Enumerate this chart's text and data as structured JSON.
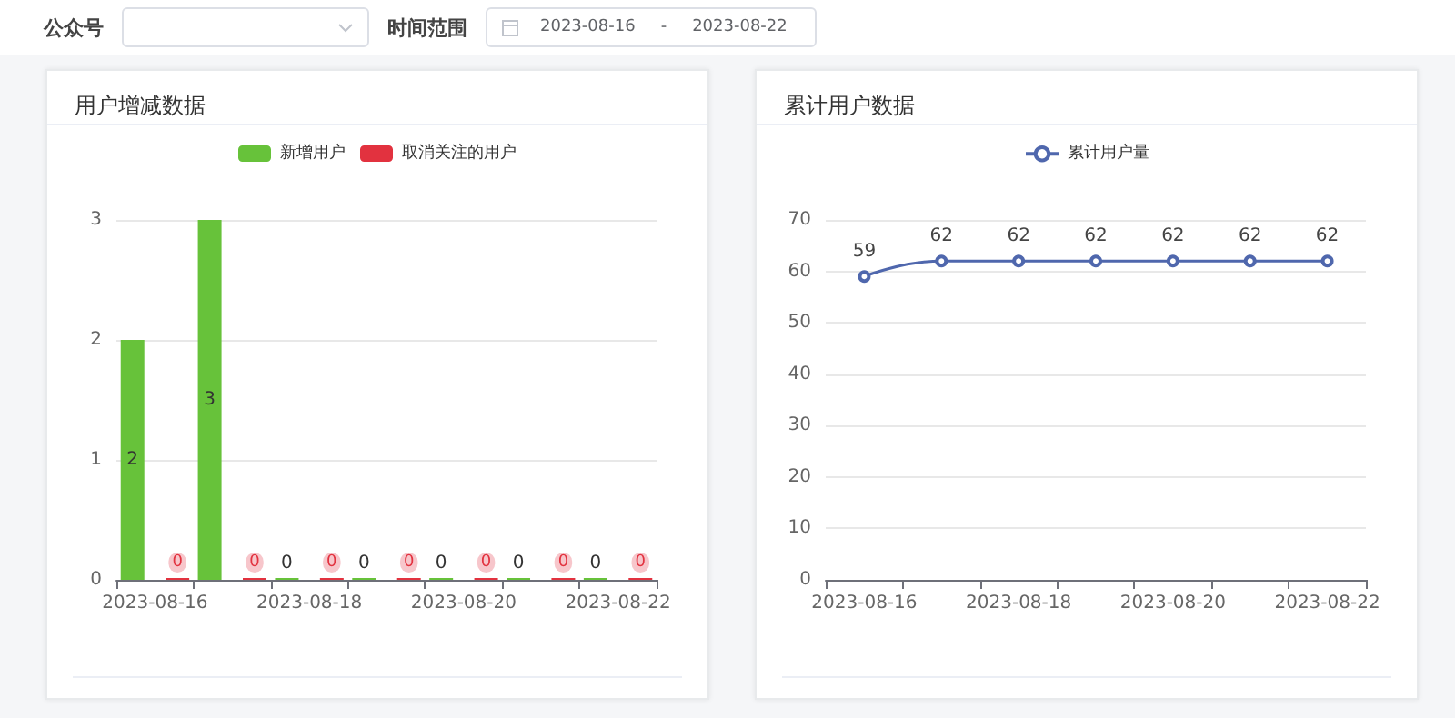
{
  "chart_data": [
    {
      "type": "other",
      "annotations": [
        "公众号",
        "时间范围",
        "2023-08-16",
        "-",
        "2023-08-22"
      ]
    },
    {
      "type": "bar",
      "title": "用户增减数据",
      "categories": [
        "2023-08-16",
        null,
        "2023-08-18",
        null,
        "2023-08-20",
        null,
        "2023-08-22"
      ],
      "series": [
        {
          "name": "新增用户",
          "color": "#67c23a",
          "values": [
            2,
            3,
            0,
            0,
            0,
            0,
            0
          ]
        },
        {
          "name": "取消关注的用户",
          "color": "#e2323f",
          "values": [
            0,
            0,
            0,
            0,
            0,
            0,
            0
          ]
        }
      ],
      "ylim": [
        0,
        3
      ],
      "yticks": [
        0,
        1,
        2,
        3
      ],
      "grid": "y",
      "legend": "top",
      "data_labels": true
    },
    {
      "type": "line",
      "title": "累计用户数据",
      "categories": [
        "2023-08-16",
        null,
        "2023-08-18",
        null,
        "2023-08-20",
        null,
        "2023-08-22"
      ],
      "series": [
        {
          "name": "累计用户量",
          "color": "#4f67ad",
          "values": [
            59,
            62,
            62,
            62,
            62,
            62,
            62
          ]
        }
      ],
      "ylim": [
        0,
        70
      ],
      "yticks": [
        0,
        10,
        20,
        30,
        40,
        50,
        60,
        70
      ],
      "grid": "y",
      "legend": "top",
      "marker": "circle",
      "data_labels": true
    }
  ]
}
